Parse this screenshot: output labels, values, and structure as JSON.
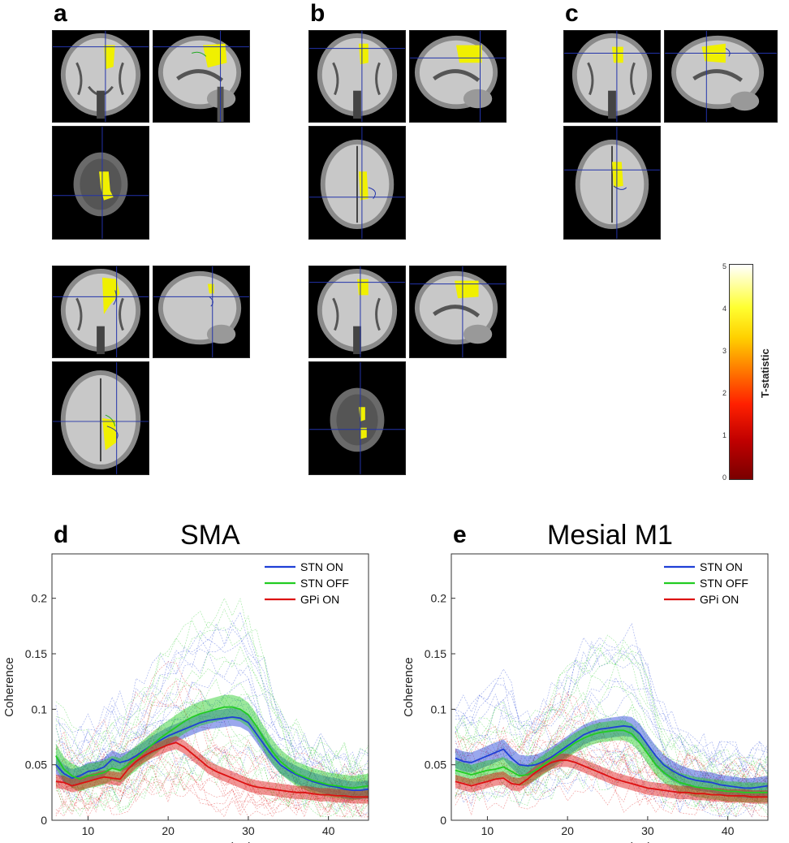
{
  "panel_letters": {
    "a": "a",
    "b": "b",
    "c": "c",
    "d": "d",
    "e": "e"
  },
  "colorbar": {
    "label": "T-statistic",
    "ticks": [
      "5",
      "4",
      "3",
      "2",
      "1",
      "0"
    ],
    "range": [
      0,
      5
    ]
  },
  "colors": {
    "stn_on": "#1f3fd6",
    "stn_off": "#22cc22",
    "gpi_on": "#dd1111",
    "activation": "#f0f000"
  },
  "chart_data": [
    {
      "type": "line",
      "title": "SMA",
      "xlabel": "Frequency (Hz)",
      "ylabel": "Coherence",
      "xlim": [
        5.5,
        45
      ],
      "ylim": [
        0,
        0.24
      ],
      "xticks": [
        "10",
        "20",
        "30",
        "40"
      ],
      "yticks": [
        "0",
        "0.05",
        "0.1",
        "0.15",
        "0.2"
      ],
      "legend_position": "top-right",
      "x": [
        6,
        7,
        8,
        9,
        10,
        11,
        12,
        13,
        14,
        15,
        16,
        17,
        18,
        19,
        20,
        21,
        22,
        23,
        24,
        25,
        26,
        27,
        28,
        29,
        30,
        31,
        32,
        33,
        34,
        35,
        36,
        37,
        38,
        39,
        40,
        41,
        42,
        43,
        44,
        45
      ],
      "series": [
        {
          "name": "STN ON",
          "values": [
            0.05,
            0.042,
            0.038,
            0.04,
            0.044,
            0.045,
            0.048,
            0.055,
            0.052,
            0.054,
            0.058,
            0.063,
            0.068,
            0.072,
            0.076,
            0.079,
            0.082,
            0.085,
            0.088,
            0.09,
            0.091,
            0.092,
            0.093,
            0.092,
            0.088,
            0.078,
            0.068,
            0.058,
            0.05,
            0.045,
            0.041,
            0.038,
            0.035,
            0.033,
            0.031,
            0.03,
            0.028,
            0.027,
            0.027,
            0.028
          ],
          "band": 0.008
        },
        {
          "name": "STN OFF",
          "values": [
            0.058,
            0.046,
            0.04,
            0.037,
            0.04,
            0.041,
            0.043,
            0.047,
            0.045,
            0.05,
            0.056,
            0.062,
            0.068,
            0.074,
            0.079,
            0.084,
            0.089,
            0.093,
            0.096,
            0.098,
            0.1,
            0.102,
            0.102,
            0.1,
            0.095,
            0.085,
            0.073,
            0.062,
            0.053,
            0.047,
            0.042,
            0.039,
            0.036,
            0.034,
            0.032,
            0.031,
            0.03,
            0.029,
            0.03,
            0.031
          ],
          "band": 0.011
        },
        {
          "name": "GPi ON",
          "values": [
            0.035,
            0.034,
            0.031,
            0.033,
            0.035,
            0.037,
            0.039,
            0.038,
            0.037,
            0.046,
            0.053,
            0.058,
            0.062,
            0.065,
            0.068,
            0.07,
            0.066,
            0.06,
            0.054,
            0.048,
            0.044,
            0.041,
            0.038,
            0.035,
            0.032,
            0.03,
            0.029,
            0.028,
            0.027,
            0.026,
            0.025,
            0.025,
            0.024,
            0.023,
            0.023,
            0.022,
            0.022,
            0.021,
            0.021,
            0.021
          ],
          "band": 0.006
        }
      ]
    },
    {
      "type": "line",
      "title": "Mesial M1",
      "xlabel": "Frequency (Hz)",
      "ylabel": "Coherence",
      "xlim": [
        5.5,
        45
      ],
      "ylim": [
        0,
        0.24
      ],
      "xticks": [
        "10",
        "20",
        "30",
        "40"
      ],
      "yticks": [
        "0",
        "0.05",
        "0.1",
        "0.15",
        "0.2"
      ],
      "legend_position": "top-right",
      "x": [
        6,
        7,
        8,
        9,
        10,
        11,
        12,
        13,
        14,
        15,
        16,
        17,
        18,
        19,
        20,
        21,
        22,
        23,
        24,
        25,
        26,
        27,
        28,
        29,
        30,
        31,
        32,
        33,
        34,
        35,
        36,
        37,
        38,
        39,
        40,
        41,
        42,
        43,
        44,
        45
      ],
      "series": [
        {
          "name": "STN ON",
          "values": [
            0.056,
            0.053,
            0.052,
            0.055,
            0.058,
            0.061,
            0.064,
            0.056,
            0.05,
            0.049,
            0.05,
            0.053,
            0.057,
            0.062,
            0.067,
            0.072,
            0.077,
            0.08,
            0.082,
            0.083,
            0.084,
            0.085,
            0.084,
            0.078,
            0.068,
            0.058,
            0.05,
            0.045,
            0.041,
            0.038,
            0.036,
            0.035,
            0.034,
            0.032,
            0.031,
            0.03,
            0.029,
            0.029,
            0.03,
            0.031
          ],
          "band": 0.009
        },
        {
          "name": "STN OFF",
          "values": [
            0.045,
            0.043,
            0.041,
            0.043,
            0.045,
            0.046,
            0.048,
            0.044,
            0.04,
            0.041,
            0.045,
            0.05,
            0.055,
            0.06,
            0.065,
            0.07,
            0.074,
            0.077,
            0.079,
            0.08,
            0.081,
            0.081,
            0.078,
            0.07,
            0.06,
            0.05,
            0.043,
            0.038,
            0.034,
            0.032,
            0.03,
            0.029,
            0.028,
            0.027,
            0.026,
            0.026,
            0.025,
            0.025,
            0.025,
            0.025
          ],
          "band": 0.009
        },
        {
          "name": "GPi ON",
          "values": [
            0.035,
            0.033,
            0.031,
            0.033,
            0.035,
            0.037,
            0.038,
            0.033,
            0.032,
            0.037,
            0.043,
            0.048,
            0.052,
            0.054,
            0.054,
            0.052,
            0.049,
            0.046,
            0.043,
            0.04,
            0.037,
            0.035,
            0.033,
            0.031,
            0.029,
            0.028,
            0.027,
            0.026,
            0.025,
            0.025,
            0.024,
            0.024,
            0.023,
            0.023,
            0.022,
            0.022,
            0.022,
            0.021,
            0.021,
            0.021
          ],
          "band": 0.006
        }
      ]
    }
  ]
}
